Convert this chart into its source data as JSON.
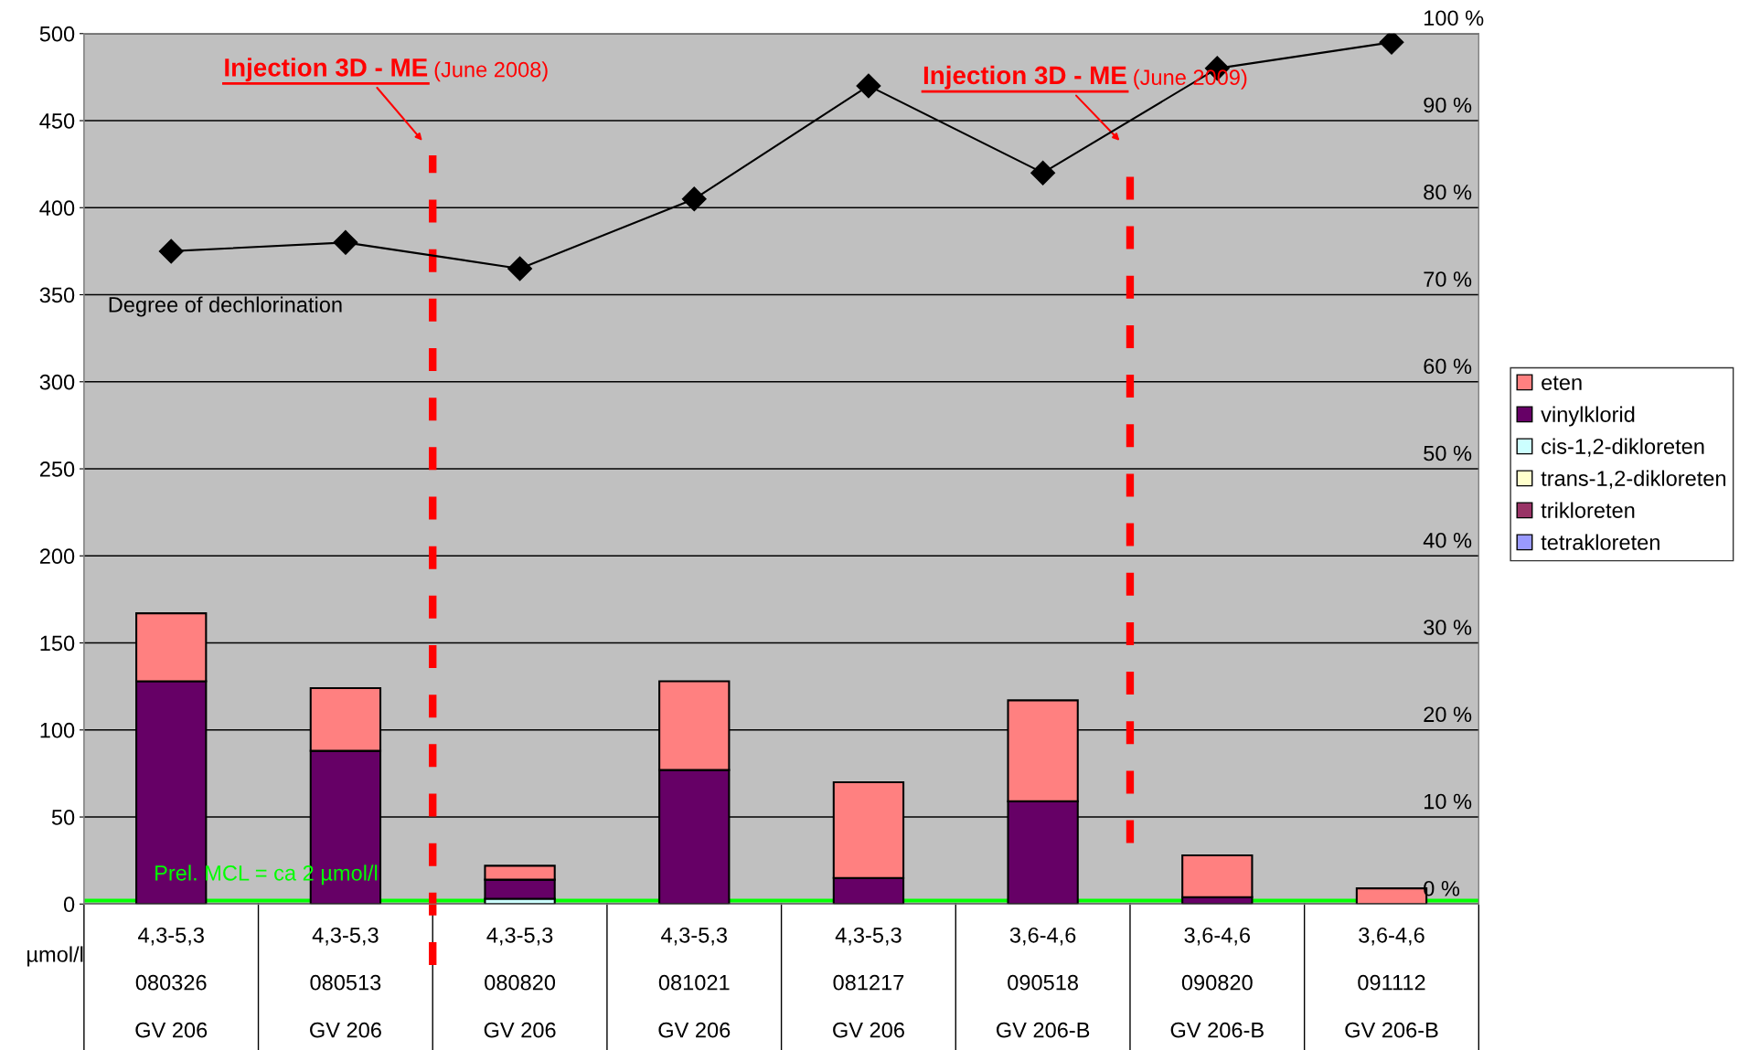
{
  "chart_data": {
    "type": "bar",
    "stacked": true,
    "categories": [
      "4,3-5,3\n080326\nGV 206",
      "4,3-5,3\n080513\nGV 206",
      "4,3-5,3\n080820\nGV 206",
      "4,3-5,3\n081021\nGV 206",
      "4,3-5,3\n081217\nGV 206",
      "3,6-4,6\n090518\nGV 206-B",
      "3,6-4,6\n090820\nGV 206-B",
      "3,6-4,6\n091112\nGV 206-B"
    ],
    "series": [
      {
        "name": "tetrakloreten",
        "color": "#9999ff",
        "values": [
          0,
          0,
          0,
          0,
          0,
          0,
          0,
          0
        ]
      },
      {
        "name": "trikloreten",
        "color": "#993366",
        "values": [
          0,
          0,
          0,
          0,
          0,
          0,
          0,
          0
        ]
      },
      {
        "name": "trans-1,2-dikloreten",
        "color": "#ffffcc",
        "values": [
          0,
          0,
          0,
          0,
          0,
          0,
          0,
          0
        ]
      },
      {
        "name": "cis-1,2-dikloreten",
        "color": "#ccffff",
        "values": [
          0,
          0,
          3,
          0,
          0,
          0,
          0,
          0
        ]
      },
      {
        "name": "vinylklorid",
        "color": "#660066",
        "values": [
          128,
          88,
          11,
          77,
          15,
          59,
          4,
          0
        ]
      },
      {
        "name": "eten",
        "color": "#ff8080",
        "values": [
          39,
          36,
          8,
          51,
          55,
          58,
          24,
          9
        ]
      },
      {
        "name": "Degree of dechlorination",
        "type": "line",
        "axis": "y2",
        "color": "#000000",
        "marker": "diamond",
        "line_style": "solid",
        "values": [
          75,
          76,
          73,
          81,
          94,
          84,
          96,
          99
        ]
      }
    ],
    "ylabel": "µmol/l",
    "ylim": [
      0,
      500
    ],
    "yticks": [
      0,
      50,
      100,
      150,
      200,
      250,
      300,
      350,
      400,
      450,
      500
    ],
    "y2lim": [
      0,
      100
    ],
    "y2ticks": [
      {
        "value": 0,
        "label": "0 %"
      },
      {
        "value": 10,
        "label": "10 %"
      },
      {
        "value": 20,
        "label": "20 %"
      },
      {
        "value": 30,
        "label": "30 %"
      },
      {
        "value": 40,
        "label": "40 %"
      },
      {
        "value": 50,
        "label": "50 %"
      },
      {
        "value": 60,
        "label": "60 %"
      },
      {
        "value": 70,
        "label": "70 %"
      },
      {
        "value": 80,
        "label": "80 %"
      },
      {
        "value": 90,
        "label": "90 %"
      },
      {
        "value": 100,
        "label": "100 %"
      }
    ],
    "ref_lines": [
      {
        "axis": "y",
        "value": 2,
        "label": "Prel. MCL = ca 2 µmol/l",
        "color": "#00ff00",
        "line_style": "solid"
      }
    ],
    "annotations": [
      "Injection 3D - ME",
      "(June 2008)",
      "Injection 3D - ME",
      "(June 2009)"
    ],
    "grid": "y",
    "legend": "right"
  }
}
